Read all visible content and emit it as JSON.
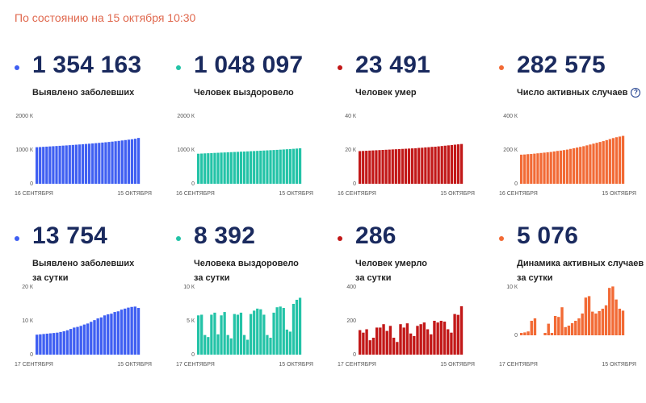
{
  "header": {
    "asof": "По состоянию на 15 октября 10:30"
  },
  "cards": [
    {
      "value": "1 354 163",
      "label1": "Выявлено заболевших",
      "label2": "",
      "info": false,
      "color": "#3f5ff2"
    },
    {
      "value": "1 048 097",
      "label1": "Человек выздоровело",
      "label2": "",
      "info": false,
      "color": "#23c3a7"
    },
    {
      "value": "23 491",
      "label1": "Человек умер",
      "label2": "",
      "info": false,
      "color": "#c21818"
    },
    {
      "value": "282 575",
      "label1": "Число активных случаев",
      "label2": "",
      "info": true,
      "info_symbol": "?",
      "color": "#f26a35"
    },
    {
      "value": "13 754",
      "label1": "Выявлено заболевших",
      "label2": "за сутки",
      "info": false,
      "color": "#3f5ff2"
    },
    {
      "value": "8 392",
      "label1": "Человека выздоровело",
      "label2": "за сутки",
      "info": false,
      "color": "#23c3a7"
    },
    {
      "value": "286",
      "label1": "Человек умерло",
      "label2": "за сутки",
      "info": false,
      "color": "#c21818"
    },
    {
      "value": "5 076",
      "label1": "Динамика активных случаев",
      "label2": "за сутки",
      "info": false,
      "color": "#f26a35"
    }
  ],
  "chart_data": [
    {
      "type": "bar",
      "xlabels": [
        "16 СЕНТЯБРЯ",
        "15 ОКТЯБРЯ"
      ],
      "yticks": [
        0,
        1000,
        2000
      ],
      "ytick_labels": [
        "0",
        "1000 К",
        "2000 К"
      ],
      "ylim": [
        0,
        2000
      ],
      "color": "#3f5ff2",
      "values": [
        1080,
        1085,
        1091,
        1097,
        1103,
        1109,
        1115,
        1121,
        1127,
        1133,
        1140,
        1147,
        1154,
        1161,
        1168,
        1176,
        1184,
        1192,
        1200,
        1208,
        1217,
        1226,
        1235,
        1245,
        1256,
        1267,
        1279,
        1291,
        1303,
        1315,
        1330,
        1354
      ]
    },
    {
      "type": "bar",
      "xlabels": [
        "16 СЕНТЯБРЯ",
        "15 ОКТЯБРЯ"
      ],
      "yticks": [
        0,
        1000,
        2000
      ],
      "ytick_labels": [
        "0",
        "1000 К",
        "2000 К"
      ],
      "ylim": [
        0,
        2000
      ],
      "color": "#23c3a7",
      "values": [
        888,
        893,
        898,
        902,
        907,
        912,
        916,
        921,
        925,
        930,
        934,
        939,
        943,
        948,
        952,
        957,
        962,
        967,
        972,
        977,
        982,
        987,
        992,
        997,
        1002,
        1008,
        1014,
        1020,
        1026,
        1033,
        1040,
        1048
      ]
    },
    {
      "type": "bar",
      "xlabels": [
        "16 СЕНТЯБРЯ",
        "15 ОКТЯБРЯ"
      ],
      "yticks": [
        0,
        20,
        40
      ],
      "ytick_labels": [
        "0",
        "20 К",
        "40 К"
      ],
      "ylim": [
        0,
        40
      ],
      "color": "#c21818",
      "values": [
        19.3,
        19.4,
        19.5,
        19.6,
        19.7,
        19.8,
        19.9,
        20.0,
        20.1,
        20.2,
        20.3,
        20.4,
        20.5,
        20.6,
        20.7,
        20.8,
        20.9,
        21.0,
        21.2,
        21.3,
        21.5,
        21.6,
        21.8,
        21.9,
        22.1,
        22.3,
        22.5,
        22.7,
        22.9,
        23.1,
        23.3,
        23.5
      ]
    },
    {
      "type": "bar",
      "xlabels": [
        "16 СЕНТЯБРЯ",
        "15 ОКТЯБРЯ"
      ],
      "yticks": [
        0,
        200,
        400
      ],
      "ytick_labels": [
        "0",
        "200 К",
        "400 К"
      ],
      "ylim": [
        0,
        400
      ],
      "color": "#f26a35",
      "values": [
        172,
        173,
        175,
        176,
        178,
        180,
        182,
        184,
        186,
        188,
        191,
        194,
        196,
        199,
        202,
        206,
        210,
        214,
        218,
        222,
        227,
        232,
        237,
        242,
        247,
        252,
        258,
        264,
        270,
        275,
        279,
        283
      ]
    },
    {
      "type": "bar",
      "xlabels": [
        "17 СЕНТЯБРЯ",
        "15 ОКТЯБРЯ"
      ],
      "yticks": [
        0,
        10,
        20
      ],
      "ytick_labels": [
        "0",
        "10 К",
        "20 К"
      ],
      "ylim": [
        0,
        20
      ],
      "color": "#3f5ff2",
      "values": [
        5.9,
        6.0,
        6.1,
        6.2,
        6.3,
        6.4,
        6.5,
        6.7,
        6.9,
        7.2,
        7.6,
        8.0,
        8.2,
        8.5,
        8.9,
        9.2,
        9.7,
        10.2,
        10.7,
        11.0,
        11.6,
        11.9,
        12.1,
        12.6,
        12.8,
        13.3,
        13.6,
        13.9,
        14.1,
        14.2,
        13.8
      ]
    },
    {
      "type": "bar",
      "xlabels": [
        "17 СЕНТЯБРЯ",
        "15 ОКТЯБРЯ"
      ],
      "yticks": [
        0,
        5,
        10
      ],
      "ytick_labels": [
        "0",
        "5 К",
        "10 К"
      ],
      "ylim": [
        0,
        10
      ],
      "color": "#23c3a7",
      "values": [
        5.8,
        5.9,
        2.9,
        2.6,
        5.9,
        6.2,
        3.0,
        5.8,
        6.3,
        2.9,
        2.4,
        6.0,
        5.9,
        6.2,
        2.9,
        2.2,
        6.0,
        6.5,
        6.8,
        6.7,
        5.9,
        2.9,
        2.5,
        6.2,
        7.0,
        7.1,
        6.9,
        3.7,
        3.4,
        7.5,
        8.1,
        8.4
      ]
    },
    {
      "type": "bar",
      "xlabels": [
        "17 СЕНТЯБРЯ",
        "15 ОКТЯБРЯ"
      ],
      "yticks": [
        0,
        200,
        400
      ],
      "ytick_labels": [
        "0",
        "200",
        "400"
      ],
      "ylim": [
        0,
        400
      ],
      "color": "#c21818",
      "values": [
        145,
        130,
        150,
        85,
        100,
        160,
        160,
        180,
        140,
        170,
        100,
        75,
        180,
        160,
        185,
        125,
        110,
        170,
        180,
        190,
        150,
        120,
        200,
        190,
        200,
        195,
        150,
        130,
        240,
        235,
        286
      ]
    },
    {
      "type": "bar",
      "xlabels": [
        "17 СЕНТЯБРЯ",
        "15 ОКТЯБРЯ"
      ],
      "yticks": [
        0,
        10
      ],
      "ytick_labels": [
        "0",
        "10 К"
      ],
      "ylim": [
        -4,
        10
      ],
      "color": "#f26a35",
      "values": [
        0.5,
        0.6,
        0.8,
        3.0,
        3.5,
        0,
        0,
        0.5,
        2.4,
        0.5,
        4.0,
        3.8,
        5.8,
        1.7,
        2.0,
        2.5,
        3.0,
        3.5,
        4.5,
        7.8,
        8.1,
        4.9,
        4.5,
        5.0,
        5.5,
        6.2,
        9.8,
        10.1,
        7.4,
        5.5,
        5.1
      ]
    }
  ]
}
